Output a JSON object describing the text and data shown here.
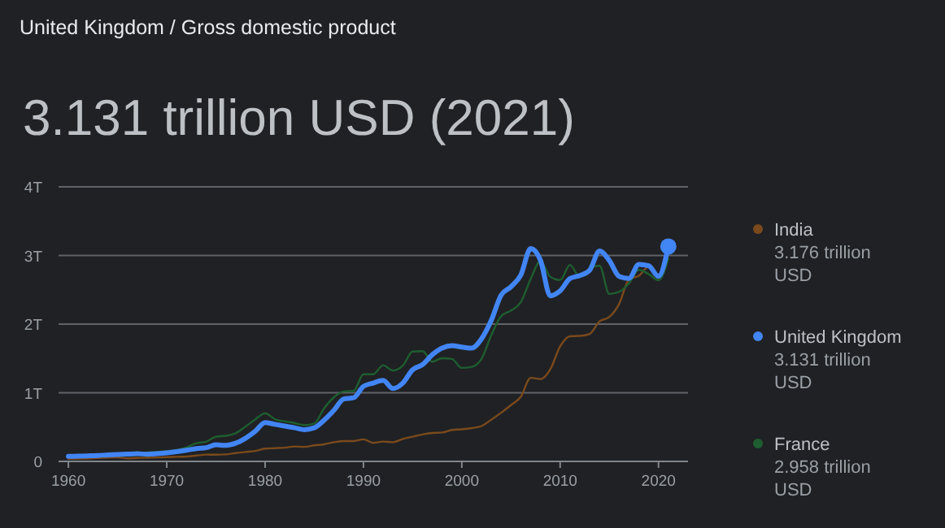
{
  "chart_data": {
    "type": "line",
    "subtitle": "United Kingdom / Gross domestic product",
    "title": "3.131 trillion USD (2021)",
    "xlim": [
      1959,
      2023
    ],
    "xticks": [
      1960,
      1970,
      1980,
      1990,
      2000,
      2010,
      2020
    ],
    "ylim": [
      0,
      4
    ],
    "yticks": [
      0,
      {
        "value": 1,
        "label": "1T"
      },
      {
        "value": 2,
        "label": "2T"
      },
      {
        "value": 3,
        "label": "3T"
      },
      {
        "value": 4,
        "label": "4T"
      }
    ],
    "grid": "y",
    "legend": "right",
    "marker": "none",
    "x": [
      1960,
      1961,
      1962,
      1963,
      1964,
      1965,
      1966,
      1967,
      1968,
      1969,
      1970,
      1971,
      1972,
      1973,
      1974,
      1975,
      1976,
      1977,
      1978,
      1979,
      1980,
      1981,
      1982,
      1983,
      1984,
      1985,
      1986,
      1987,
      1988,
      1989,
      1990,
      1991,
      1992,
      1993,
      1994,
      1995,
      1996,
      1997,
      1998,
      1999,
      2000,
      2001,
      2002,
      2003,
      2004,
      2005,
      2006,
      2007,
      2008,
      2009,
      2010,
      2011,
      2012,
      2013,
      2014,
      2015,
      2016,
      2017,
      2018,
      2019,
      2020,
      2021
    ],
    "series": [
      {
        "name": "India",
        "color": "#7a4a1c",
        "values": [
          0.037,
          0.039,
          0.042,
          0.049,
          0.056,
          0.059,
          0.045,
          0.05,
          0.053,
          0.058,
          0.062,
          0.067,
          0.071,
          0.085,
          0.099,
          0.098,
          0.102,
          0.121,
          0.137,
          0.153,
          0.186,
          0.193,
          0.2,
          0.218,
          0.212,
          0.233,
          0.249,
          0.279,
          0.296,
          0.296,
          0.321,
          0.27,
          0.288,
          0.279,
          0.327,
          0.36,
          0.392,
          0.415,
          0.421,
          0.458,
          0.468,
          0.485,
          0.515,
          0.608,
          0.709,
          0.82,
          0.94,
          1.217,
          1.199,
          1.342,
          1.676,
          1.823,
          1.828,
          1.857,
          2.039,
          2.104,
          2.295,
          2.651,
          2.703,
          2.836,
          2.668,
          3.176
        ]
      },
      {
        "name": "United Kingdom",
        "color": "#4285f4",
        "values": [
          0.073,
          0.077,
          0.081,
          0.086,
          0.094,
          0.1,
          0.106,
          0.111,
          0.105,
          0.113,
          0.125,
          0.141,
          0.162,
          0.187,
          0.2,
          0.242,
          0.234,
          0.264,
          0.336,
          0.439,
          0.565,
          0.54,
          0.515,
          0.49,
          0.462,
          0.489,
          0.601,
          0.745,
          0.91,
          0.927,
          1.093,
          1.142,
          1.179,
          1.061,
          1.14,
          1.335,
          1.409,
          1.555,
          1.652,
          1.687,
          1.666,
          1.65,
          1.785,
          2.055,
          2.422,
          2.544,
          2.715,
          3.1,
          2.929,
          2.412,
          2.485,
          2.664,
          2.707,
          2.785,
          3.065,
          2.928,
          2.695,
          2.666,
          2.871,
          2.851,
          2.697,
          3.131
        ]
      },
      {
        "name": "France",
        "color": "#1e5e30",
        "values": [
          0.062,
          0.068,
          0.076,
          0.085,
          0.094,
          0.102,
          0.11,
          0.119,
          0.13,
          0.141,
          0.149,
          0.166,
          0.204,
          0.265,
          0.286,
          0.36,
          0.373,
          0.41,
          0.506,
          0.613,
          0.701,
          0.615,
          0.584,
          0.559,
          0.53,
          0.553,
          0.772,
          0.935,
          1.019,
          1.026,
          1.269,
          1.27,
          1.401,
          1.323,
          1.394,
          1.601,
          1.606,
          1.452,
          1.503,
          1.492,
          1.362,
          1.377,
          1.494,
          1.84,
          2.116,
          2.197,
          2.32,
          2.657,
          2.918,
          2.69,
          2.643,
          2.862,
          2.683,
          2.811,
          2.852,
          2.439,
          2.472,
          2.595,
          2.79,
          2.729,
          2.639,
          2.958
        ]
      },
      {
        "type": "scatter",
        "color": "#4285f4",
        "x": [
          2021
        ],
        "values": [
          3.131
        ],
        "marker": "circle"
      }
    ],
    "annotations": [
      "3.176 trillion USD",
      "3.131 trillion USD",
      "2.958 trillion USD"
    ]
  }
}
